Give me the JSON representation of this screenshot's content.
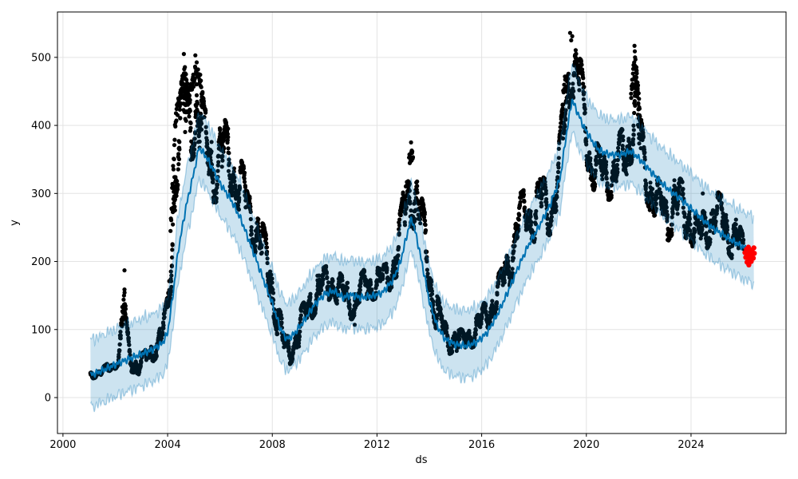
{
  "figure": {
    "background": "#ffffff"
  },
  "chart_data": {
    "type": "scatter",
    "title": "",
    "xlabel": "ds",
    "ylabel": "y",
    "x_tick_labels": [
      "2000",
      "2004",
      "2008",
      "2012",
      "2016",
      "2020",
      "2024"
    ],
    "x_tick_values": [
      2000,
      2004,
      2008,
      2012,
      2016,
      2020,
      2024
    ],
    "y_tick_labels": [
      "0",
      "100",
      "200",
      "300",
      "400",
      "500"
    ],
    "y_tick_values": [
      0,
      100,
      200,
      300,
      400,
      500
    ],
    "xlim": [
      1999.79,
      2027.63
    ],
    "ylim": [
      -52.8,
      566.7
    ],
    "grid": true,
    "legend_position": "none",
    "colors": {
      "actual_points": "#000000",
      "forecast_line": "#0072B2",
      "uncertainty_band": "#0072B2",
      "band_opacity": 0.2,
      "recent_points": "#ff0000",
      "gridline": "#e3e3e3",
      "axis": "#000000"
    },
    "series": [
      {
        "name": "forecast_yhat",
        "style": "line",
        "color": "#0072B2",
        "points": [
          [
            2001.05,
            33
          ],
          [
            2001.4,
            38
          ],
          [
            2001.8,
            45
          ],
          [
            2002.2,
            52
          ],
          [
            2002.6,
            58
          ],
          [
            2003.0,
            64
          ],
          [
            2003.4,
            70
          ],
          [
            2003.8,
            80
          ],
          [
            2004.0,
            95
          ],
          [
            2004.2,
            150
          ],
          [
            2004.4,
            215
          ],
          [
            2004.7,
            280
          ],
          [
            2005.0,
            330
          ],
          [
            2005.2,
            368
          ],
          [
            2005.45,
            355
          ],
          [
            2005.7,
            338
          ],
          [
            2006.0,
            315
          ],
          [
            2006.4,
            292
          ],
          [
            2006.8,
            262
          ],
          [
            2007.2,
            222
          ],
          [
            2007.6,
            180
          ],
          [
            2008.0,
            138
          ],
          [
            2008.3,
            102
          ],
          [
            2008.55,
            86
          ],
          [
            2008.8,
            92
          ],
          [
            2009.2,
            112
          ],
          [
            2009.6,
            136
          ],
          [
            2010.0,
            152
          ],
          [
            2010.35,
            157
          ],
          [
            2010.7,
            147
          ],
          [
            2011.0,
            151
          ],
          [
            2011.4,
            147
          ],
          [
            2011.8,
            149
          ],
          [
            2012.2,
            154
          ],
          [
            2012.6,
            172
          ],
          [
            2012.9,
            200
          ],
          [
            2013.15,
            240
          ],
          [
            2013.32,
            264
          ],
          [
            2013.5,
            238
          ],
          [
            2013.75,
            192
          ],
          [
            2014.0,
            142
          ],
          [
            2014.3,
            105
          ],
          [
            2014.6,
            86
          ],
          [
            2015.0,
            78
          ],
          [
            2015.4,
            76
          ],
          [
            2015.8,
            81
          ],
          [
            2016.2,
            95
          ],
          [
            2016.6,
            122
          ],
          [
            2017.0,
            155
          ],
          [
            2017.4,
            192
          ],
          [
            2017.8,
            225
          ],
          [
            2018.2,
            252
          ],
          [
            2018.6,
            282
          ],
          [
            2019.0,
            322
          ],
          [
            2019.25,
            390
          ],
          [
            2019.45,
            438
          ],
          [
            2019.65,
            420
          ],
          [
            2019.9,
            398
          ],
          [
            2020.2,
            378
          ],
          [
            2020.5,
            363
          ],
          [
            2020.9,
            357
          ],
          [
            2021.3,
            357
          ],
          [
            2021.7,
            362
          ],
          [
            2022.0,
            352
          ],
          [
            2022.4,
            335
          ],
          [
            2022.8,
            318
          ],
          [
            2023.2,
            304
          ],
          [
            2023.6,
            292
          ],
          [
            2024.0,
            278
          ],
          [
            2024.4,
            263
          ],
          [
            2024.8,
            250
          ],
          [
            2025.2,
            240
          ],
          [
            2025.6,
            230
          ],
          [
            2026.0,
            221
          ],
          [
            2026.4,
            214
          ]
        ]
      },
      {
        "name": "uncertainty_band",
        "style": "band",
        "color": "#0072B2",
        "opacity": 0.2,
        "offset_upper": 52,
        "offset_lower": 47,
        "t_start": 2001.05,
        "t_end": 2026.4
      },
      {
        "name": "actual_history",
        "style": "scatter",
        "color": "#000000",
        "columns": [
          [
            2001.05,
            27,
            38
          ],
          [
            2001.3,
            30,
            42
          ],
          [
            2001.6,
            33,
            47
          ],
          [
            2001.9,
            38,
            56
          ],
          [
            2002.1,
            46,
            72
          ],
          [
            2002.25,
            58,
            120
          ],
          [
            2002.35,
            75,
            186
          ],
          [
            2002.45,
            55,
            105
          ],
          [
            2002.6,
            38,
            72
          ],
          [
            2002.9,
            34,
            60
          ],
          [
            2003.2,
            44,
            72
          ],
          [
            2003.5,
            55,
            92
          ],
          [
            2003.8,
            72,
            112
          ],
          [
            2004.0,
            92,
            150
          ],
          [
            2004.15,
            160,
            290
          ],
          [
            2004.3,
            290,
            420
          ],
          [
            2004.5,
            330,
            460
          ],
          [
            2004.65,
            345,
            490
          ],
          [
            2004.8,
            335,
            450
          ],
          [
            2005.0,
            355,
            480
          ],
          [
            2005.1,
            375,
            498
          ],
          [
            2005.25,
            355,
            475
          ],
          [
            2005.4,
            325,
            430
          ],
          [
            2005.6,
            295,
            400
          ],
          [
            2005.8,
            285,
            390
          ],
          [
            2006.0,
            295,
            400
          ],
          [
            2006.2,
            325,
            408
          ],
          [
            2006.45,
            295,
            380
          ],
          [
            2006.7,
            275,
            360
          ],
          [
            2007.0,
            238,
            330
          ],
          [
            2007.3,
            218,
            300
          ],
          [
            2007.6,
            182,
            262
          ],
          [
            2007.9,
            148,
            222
          ],
          [
            2008.1,
            108,
            178
          ],
          [
            2008.3,
            68,
            128
          ],
          [
            2008.5,
            44,
            88
          ],
          [
            2008.7,
            50,
            95
          ],
          [
            2008.9,
            64,
            112
          ],
          [
            2009.1,
            78,
            132
          ],
          [
            2009.4,
            108,
            162
          ],
          [
            2009.7,
            128,
            182
          ],
          [
            2010.0,
            138,
            192
          ],
          [
            2010.3,
            148,
            198
          ],
          [
            2010.6,
            128,
            182
          ],
          [
            2010.9,
            113,
            168
          ],
          [
            2011.2,
            118,
            172
          ],
          [
            2011.5,
            138,
            188
          ],
          [
            2011.8,
            143,
            192
          ],
          [
            2012.1,
            148,
            192
          ],
          [
            2012.4,
            152,
            198
          ],
          [
            2012.7,
            172,
            238
          ],
          [
            2012.9,
            198,
            278
          ],
          [
            2013.1,
            228,
            328
          ],
          [
            2013.3,
            255,
            372
          ],
          [
            2013.45,
            245,
            348
          ],
          [
            2013.6,
            228,
            318
          ],
          [
            2013.8,
            188,
            278
          ],
          [
            2014.0,
            148,
            228
          ],
          [
            2014.2,
            108,
            178
          ],
          [
            2014.45,
            78,
            128
          ],
          [
            2014.7,
            63,
            103
          ],
          [
            2015.0,
            68,
            108
          ],
          [
            2015.3,
            63,
            98
          ],
          [
            2015.6,
            73,
            113
          ],
          [
            2015.9,
            78,
            123
          ],
          [
            2016.2,
            98,
            148
          ],
          [
            2016.5,
            118,
            172
          ],
          [
            2016.8,
            138,
            192
          ],
          [
            2017.1,
            168,
            238
          ],
          [
            2017.4,
            218,
            298
          ],
          [
            2017.7,
            238,
            308
          ],
          [
            2018.0,
            228,
            308
          ],
          [
            2018.3,
            248,
            328
          ],
          [
            2018.6,
            238,
            318
          ],
          [
            2018.9,
            268,
            348
          ],
          [
            2019.1,
            325,
            445
          ],
          [
            2019.3,
            415,
            515
          ],
          [
            2019.45,
            445,
            530
          ],
          [
            2019.6,
            425,
            515
          ],
          [
            2019.8,
            415,
            498
          ],
          [
            2020.0,
            345,
            428
          ],
          [
            2020.2,
            308,
            388
          ],
          [
            2020.5,
            298,
            368
          ],
          [
            2020.8,
            288,
            358
          ],
          [
            2021.1,
            298,
            378
          ],
          [
            2021.4,
            308,
            398
          ],
          [
            2021.65,
            328,
            428
          ],
          [
            2021.85,
            375,
            512
          ],
          [
            2022.0,
            328,
            448
          ],
          [
            2022.2,
            298,
            378
          ],
          [
            2022.5,
            268,
            348
          ],
          [
            2022.8,
            238,
            318
          ],
          [
            2023.1,
            228,
            308
          ],
          [
            2023.4,
            248,
            328
          ],
          [
            2023.7,
            238,
            318
          ],
          [
            2024.0,
            228,
            298
          ],
          [
            2024.3,
            198,
            258
          ],
          [
            2024.6,
            218,
            288
          ],
          [
            2024.9,
            238,
            308
          ],
          [
            2025.2,
            228,
            298
          ],
          [
            2025.5,
            208,
            278
          ],
          [
            2025.8,
            193,
            258
          ],
          [
            2026.02,
            188,
            238
          ]
        ]
      },
      {
        "name": "actual_extremes",
        "style": "scatter",
        "color": "#000000",
        "points": [
          [
            2002.35,
            187
          ],
          [
            2004.62,
            505
          ],
          [
            2005.06,
            503
          ],
          [
            2013.3,
            375
          ],
          [
            2013.33,
            363
          ],
          [
            2019.38,
            536
          ],
          [
            2019.42,
            525
          ],
          [
            2019.46,
            531
          ],
          [
            2021.84,
            517
          ],
          [
            2021.86,
            500
          ],
          [
            2024.45,
            300
          ],
          [
            2011.15,
            107
          ]
        ]
      },
      {
        "name": "recent_actual",
        "style": "scatter",
        "color": "#ff0000",
        "points": [
          [
            2026.06,
            213
          ],
          [
            2026.09,
            206
          ],
          [
            2026.12,
            218
          ],
          [
            2026.14,
            199
          ],
          [
            2026.16,
            210
          ],
          [
            2026.19,
            221
          ],
          [
            2026.21,
            195
          ],
          [
            2026.23,
            204
          ],
          [
            2026.26,
            214
          ],
          [
            2026.28,
            208
          ],
          [
            2026.3,
            200
          ],
          [
            2026.33,
            217
          ],
          [
            2026.35,
            211
          ],
          [
            2026.38,
            205
          ],
          [
            2026.4,
            220
          ],
          [
            2026.42,
            212
          ]
        ]
      }
    ]
  }
}
